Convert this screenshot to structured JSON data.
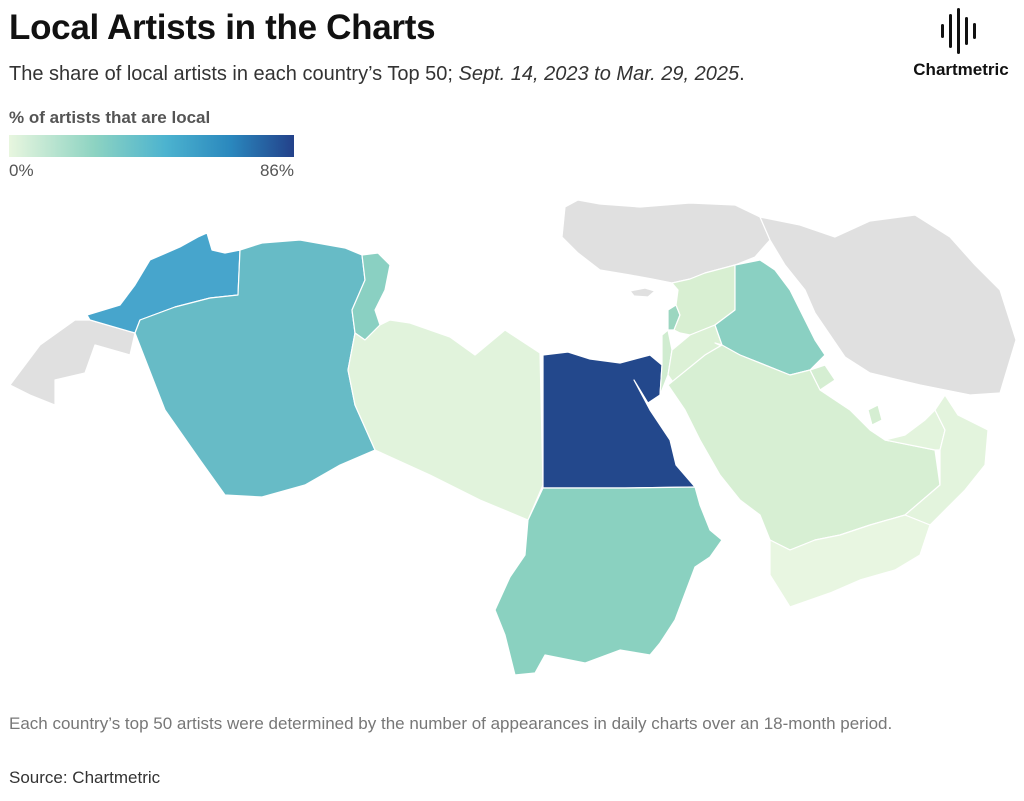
{
  "header": {
    "title": "Local Artists in the Charts",
    "subtitle_main": "The share of local artists in each country’s Top 50; ",
    "subtitle_period": "Sept. 14, 2023 to Mar. 29, 2025",
    "subtitle_end": "."
  },
  "logo": {
    "text": "Chartmetric",
    "icon": "soundwave-icon"
  },
  "legend": {
    "title": "% of artists that are local",
    "min_label": "0%",
    "max_label": "86%",
    "colors": [
      "#e8f6df",
      "#8dd3c2",
      "#4cb3cf",
      "#2a87bd",
      "#23418a"
    ]
  },
  "map": {
    "no_data_color": "#e0e0e0",
    "regions": [
      {
        "id": "morocco",
        "color": "#47a5cc"
      },
      {
        "id": "algeria",
        "color": "#67bbc6"
      },
      {
        "id": "tunisia",
        "color": "#8ad0c2"
      },
      {
        "id": "libya",
        "color": "#e1f3dc"
      },
      {
        "id": "egypt",
        "color": "#23488c"
      },
      {
        "id": "sudan",
        "color": "#8ad1c0"
      },
      {
        "id": "saudi-arabia",
        "color": "#d7efd3"
      },
      {
        "id": "iraq",
        "color": "#8ad0c2"
      },
      {
        "id": "syria",
        "color": "#d8efd2"
      },
      {
        "id": "jordan",
        "color": "#dcf1d6"
      },
      {
        "id": "lebanon",
        "color": "#9bd6c0"
      },
      {
        "id": "israel",
        "color": "#d0ecd0"
      },
      {
        "id": "kuwait",
        "color": "#d5eed2"
      },
      {
        "id": "qatar",
        "color": "#d5eed2"
      },
      {
        "id": "uae",
        "color": "#e3f4dd"
      },
      {
        "id": "oman",
        "color": "#e3f4dd"
      },
      {
        "id": "yemen",
        "color": "#e8f6e1"
      },
      {
        "id": "western-sahara",
        "color": "#e0e0e0"
      },
      {
        "id": "turkey",
        "color": "#e0e0e0"
      },
      {
        "id": "iran",
        "color": "#e0e0e0"
      },
      {
        "id": "cyprus",
        "color": "#e0e0e0"
      }
    ]
  },
  "footer": {
    "note": "Each country’s top 50 artists were determined by the number of appearances in daily charts over an 18-month period.",
    "source": "Source: Chartmetric"
  }
}
